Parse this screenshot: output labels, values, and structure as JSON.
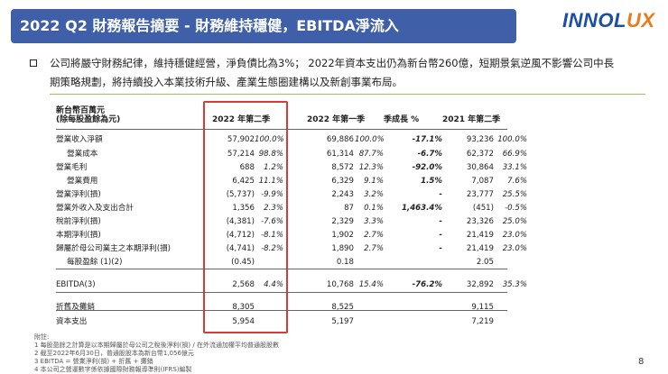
{
  "title": "2022 Q2 財務報告摘要 - 財務維持穩健，EBITDA淨流入",
  "logo": {
    "main": "INNOL",
    "tail": "UX"
  },
  "summary": [
    "公司將嚴守財務紀律，維持穩健經營，淨負債比為3%； 2022年資本支出仍為新台幣260億，短期景氣逆風不影響公司中長",
    "期策略規劃，將持續投入本業技術升級、產業生態圈建構以及新創事業布局。"
  ],
  "table": {
    "unit_label_1": "新台幣百萬元",
    "unit_label_2": "(除每股盈餘為元)",
    "headers": {
      "q2_2022": "2022 年第二季",
      "q1_2022": "2022 年第一季",
      "growth": "季成長 %",
      "q2_2021": "2021 年第二季"
    },
    "rows": [
      {
        "label": "營業收入淨額",
        "v22": "57,902",
        "p22": "100.0%",
        "vq1": "69,886",
        "pq1": "100.0%",
        "gr": "-17.1%",
        "v21": "93,236",
        "p21": "100.0%"
      },
      {
        "label": "營業成本",
        "v22": "57,214",
        "p22": "98.8%",
        "vq1": "61,314",
        "pq1": "87.7%",
        "gr": "-6.7%",
        "v21": "62,372",
        "p21": "66.9%"
      },
      {
        "label": "營業毛利",
        "v22": "688",
        "p22": "1.2%",
        "vq1": "8,572",
        "pq1": "12.3%",
        "gr": "-92.0%",
        "v21": "30,864",
        "p21": "33.1%"
      },
      {
        "label": "營業費用",
        "v22": "6,425",
        "p22": "11.1%",
        "vq1": "6,329",
        "pq1": "9.1%",
        "gr": "1.5%",
        "v21": "7,087",
        "p21": "7.6%"
      },
      {
        "label": "營業淨利(損)",
        "v22": "(5,737)",
        "p22": "-9.9%",
        "vq1": "2,243",
        "pq1": "3.2%",
        "gr": "-",
        "v21": "23,777",
        "p21": "25.5%"
      },
      {
        "label": "營業外收入及支出合計",
        "v22": "1,356",
        "p22": "2.3%",
        "vq1": "87",
        "pq1": "0.1%",
        "gr": "1,463.4%",
        "v21": "(451)",
        "p21": "-0.5%"
      },
      {
        "label": "稅前淨利(損)",
        "v22": "(4,381)",
        "p22": "-7.6%",
        "vq1": "2,329",
        "pq1": "3.3%",
        "gr": "-",
        "v21": "23,326",
        "p21": "25.0%"
      },
      {
        "label": "本期淨利(損)",
        "v22": "(4,712)",
        "p22": "-8.1%",
        "vq1": "1,902",
        "pq1": "2.7%",
        "gr": "-",
        "v21": "21,419",
        "p21": "23.0%"
      },
      {
        "label": "歸屬於母公司業主之本期淨利(損)",
        "v22": "(4,741)",
        "p22": "-8.2%",
        "vq1": "1,890",
        "pq1": "2.7%",
        "gr": "-",
        "v21": "21,419",
        "p21": "23.0%"
      },
      {
        "label": "每股盈餘 (1)(2)",
        "v22": "(0.45)",
        "p22": "",
        "vq1": "0.18",
        "pq1": "",
        "gr": "",
        "v21": "2.05",
        "p21": ""
      },
      {
        "label": "EBITDA(3)",
        "v22": "2,568",
        "p22": "4.4%",
        "vq1": "10,768",
        "pq1": "15.4%",
        "gr": "-76.2%",
        "v21": "32,892",
        "p21": "35.3%"
      },
      {
        "label": "折舊及攤銷",
        "v22": "8,305",
        "p22": "",
        "vq1": "8,525",
        "pq1": "",
        "gr": "",
        "v21": "9,115",
        "p21": ""
      },
      {
        "label": "資本支出",
        "v22": "5,954",
        "p22": "",
        "vq1": "5,197",
        "pq1": "",
        "gr": "",
        "v21": "7,219",
        "p21": ""
      }
    ]
  },
  "notes": {
    "title": "附註:",
    "items": [
      "1    每股盈餘之計算是以本期歸屬於母公司之稅後淨利(損) / 在外流通加權平均普通股股數",
      "2    截至2022年6月30日，普通股股本為新台幣1,056億元",
      "3    EBITDA = 營業淨利(損) + 折舊 + 攤銷",
      "4    本公司之營運數字係依據國際財務報導準則(IFRS)編製"
    ]
  },
  "page_number": "8",
  "colors": {
    "title_bg": "#3f5fa8",
    "highlight": "#d83a3a",
    "accent_line": "#9ac26b"
  }
}
